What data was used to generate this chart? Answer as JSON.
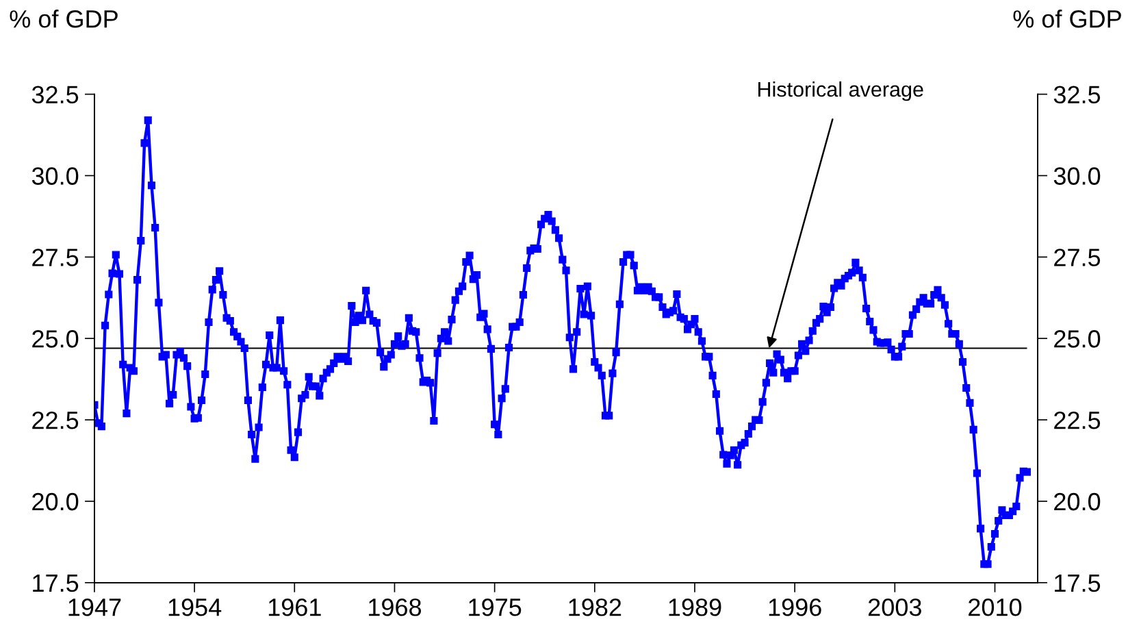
{
  "chart_data": {
    "type": "line",
    "ylabel": "% of GDP",
    "y2label": "% of GDP",
    "x": [
      1947,
      1947.25,
      1947.5,
      1947.75,
      1948,
      1948.25,
      1948.5,
      1948.75,
      1949,
      1949.25,
      1949.5,
      1949.75,
      1950,
      1950.25,
      1950.5,
      1950.75,
      1951,
      1951.25,
      1951.5,
      1951.75,
      1952,
      1952.25,
      1952.5,
      1952.75,
      1953,
      1953.25,
      1953.5,
      1953.75,
      1954,
      1954.25,
      1954.5,
      1954.75,
      1955,
      1955.25,
      1955.5,
      1955.75,
      1956,
      1956.25,
      1956.5,
      1956.75,
      1957,
      1957.25,
      1957.5,
      1957.75,
      1958,
      1958.25,
      1958.5,
      1958.75,
      1959,
      1959.25,
      1959.5,
      1959.75,
      1960,
      1960.25,
      1960.5,
      1960.75,
      1961,
      1961.25,
      1961.5,
      1961.75,
      1962,
      1962.25,
      1962.5,
      1962.75,
      1963,
      1963.25,
      1963.5,
      1963.75,
      1964,
      1964.25,
      1964.5,
      1964.75,
      1965,
      1965.25,
      1965.5,
      1965.75,
      1966,
      1966.25,
      1966.5,
      1966.75,
      1967,
      1967.25,
      1967.5,
      1967.75,
      1968,
      1968.25,
      1968.5,
      1968.75,
      1969,
      1969.25,
      1969.5,
      1969.75,
      1970,
      1970.25,
      1970.5,
      1970.75,
      1971,
      1971.25,
      1971.5,
      1971.75,
      1972,
      1972.25,
      1972.5,
      1972.75,
      1973,
      1973.25,
      1973.5,
      1973.75,
      1974,
      1974.25,
      1974.5,
      1974.75,
      1975,
      1975.25,
      1975.5,
      1975.75,
      1976,
      1976.25,
      1976.5,
      1976.75,
      1977,
      1977.25,
      1977.5,
      1977.75,
      1978,
      1978.25,
      1978.5,
      1978.75,
      1979,
      1979.25,
      1979.5,
      1979.75,
      1980,
      1980.25,
      1980.5,
      1980.75,
      1981,
      1981.25,
      1981.5,
      1981.75,
      1982,
      1982.25,
      1982.5,
      1982.75,
      1983,
      1983.25,
      1983.5,
      1983.75,
      1984,
      1984.25,
      1984.5,
      1984.75,
      1985,
      1985.25,
      1985.5,
      1985.75,
      1986,
      1986.25,
      1986.5,
      1986.75,
      1987,
      1987.25,
      1987.5,
      1987.75,
      1988,
      1988.25,
      1988.5,
      1988.75,
      1989,
      1989.25,
      1989.5,
      1989.75,
      1990,
      1990.25,
      1990.5,
      1990.75,
      1991,
      1991.25,
      1991.5,
      1991.75,
      1992,
      1992.25,
      1992.5,
      1992.75,
      1993,
      1993.25,
      1993.5,
      1993.75,
      1994,
      1994.25,
      1994.5,
      1994.75,
      1995,
      1995.25,
      1995.5,
      1995.75,
      1996,
      1996.25,
      1996.5,
      1996.75,
      1997,
      1997.25,
      1997.5,
      1997.75,
      1998,
      1998.25,
      1998.5,
      1998.75,
      1999,
      1999.25,
      1999.5,
      1999.75,
      2000,
      2000.25,
      2000.5,
      2000.75,
      2001,
      2001.25,
      2001.5,
      2001.75,
      2002,
      2002.25,
      2002.5,
      2002.75,
      2003,
      2003.25,
      2003.5,
      2003.75,
      2004,
      2004.25,
      2004.5,
      2004.75,
      2005,
      2005.25,
      2005.5,
      2005.75,
      2006,
      2006.25,
      2006.5,
      2006.75,
      2007,
      2007.25,
      2007.5,
      2007.75,
      2008,
      2008.25,
      2008.5,
      2008.75,
      2009,
      2009.25,
      2009.5,
      2009.75,
      2010,
      2010.25,
      2010.5,
      2010.75,
      2011,
      2011.25,
      2011.5,
      2011.75,
      2012,
      2012.25
    ],
    "series": [
      {
        "color": "#0000ff",
        "values": [
          22.96,
          22.4,
          22.3,
          25.4,
          26.35,
          27.0,
          27.57,
          26.98,
          24.2,
          22.7,
          24.1,
          24.0,
          26.8,
          28.0,
          31.0,
          31.7,
          29.7,
          28.4,
          26.1,
          24.44,
          24.5,
          23.0,
          23.27,
          24.5,
          24.6,
          24.4,
          24.15,
          22.9,
          22.54,
          22.56,
          23.1,
          23.9,
          25.5,
          26.5,
          26.8,
          27.07,
          26.34,
          25.63,
          25.54,
          25.2,
          25.06,
          24.9,
          24.7,
          23.1,
          22.05,
          21.3,
          22.27,
          23.5,
          24.2,
          25.1,
          24.1,
          24.1,
          25.56,
          24.0,
          23.58,
          21.57,
          21.35,
          22.12,
          23.16,
          23.27,
          23.82,
          23.53,
          23.53,
          23.24,
          23.77,
          23.95,
          24.06,
          24.24,
          24.44,
          24.37,
          24.44,
          24.3,
          26.0,
          25.5,
          25.7,
          25.56,
          26.47,
          25.74,
          25.54,
          25.48,
          24.57,
          24.13,
          24.37,
          24.5,
          24.83,
          25.07,
          24.77,
          24.83,
          25.63,
          25.23,
          25.2,
          24.4,
          23.66,
          23.71,
          23.64,
          22.47,
          24.55,
          25.0,
          25.2,
          24.92,
          25.58,
          26.18,
          26.45,
          26.6,
          27.35,
          27.55,
          26.82,
          26.95,
          25.65,
          25.76,
          25.28,
          24.68,
          22.36,
          22.05,
          23.16,
          23.45,
          24.72,
          25.36,
          25.36,
          25.5,
          26.34,
          27.16,
          27.7,
          27.77,
          27.75,
          28.5,
          28.68,
          28.8,
          28.6,
          28.33,
          28.08,
          27.42,
          27.09,
          25.03,
          24.06,
          25.2,
          26.53,
          25.74,
          26.6,
          25.7,
          24.28,
          24.1,
          23.86,
          22.63,
          22.63,
          23.93,
          24.57,
          26.05,
          27.35,
          27.57,
          27.57,
          27.24,
          26.47,
          26.58,
          26.47,
          26.58,
          26.45,
          26.27,
          26.27,
          25.96,
          25.74,
          25.8,
          25.85,
          26.36,
          25.65,
          25.6,
          25.28,
          25.43,
          25.6,
          25.2,
          24.92,
          24.44,
          24.44,
          23.86,
          23.29,
          22.16,
          21.43,
          21.15,
          21.41,
          21.57,
          21.12,
          21.72,
          21.8,
          22.07,
          22.3,
          22.5,
          22.49,
          23.05,
          23.64,
          24.24,
          23.95,
          24.52,
          24.35,
          23.95,
          23.77,
          24.0,
          24.0,
          24.48,
          24.83,
          24.61,
          24.94,
          25.23,
          25.48,
          25.6,
          25.98,
          25.8,
          25.96,
          26.54,
          26.71,
          26.62,
          26.84,
          26.93,
          27.02,
          27.33,
          27.09,
          26.87,
          25.92,
          25.52,
          25.26,
          24.9,
          24.86,
          24.86,
          24.88,
          24.66,
          24.44,
          24.44,
          24.75,
          25.14,
          25.14,
          25.72,
          25.9,
          26.12,
          26.25,
          26.07,
          26.07,
          26.34,
          26.49,
          26.25,
          26.03,
          25.45,
          25.14,
          25.14,
          24.83,
          24.28,
          23.48,
          23.02,
          22.2,
          20.86,
          19.16,
          18.07,
          18.07,
          18.6,
          19.0,
          19.4,
          19.73,
          19.57,
          19.57,
          19.69,
          19.84,
          20.72,
          20.92,
          20.9
        ]
      }
    ],
    "xlim": [
      1947,
      2013
    ],
    "xticks": [
      1947,
      1954,
      1961,
      1968,
      1975,
      1982,
      1989,
      1996,
      2003,
      2010
    ],
    "ylim": [
      17.5,
      32.5
    ],
    "yticks": [
      17.5,
      {
        "value": 20,
        "label": "20.0"
      },
      22.5,
      {
        "value": 25,
        "label": "25.0"
      },
      27.5,
      {
        "value": 30,
        "label": "30.0"
      },
      32.5
    ],
    "y2lim": [
      17.5,
      32.5
    ],
    "y2ticks": [
      17.5,
      {
        "value": 20,
        "label": "20.0"
      },
      22.5,
      {
        "value": 25,
        "label": "25.0"
      },
      27.5,
      {
        "value": 30,
        "label": "30.0"
      },
      32.5
    ],
    "ref_lines": [
      {
        "axis": "y",
        "value": 24.7,
        "color": "#000000",
        "line_style": "solid"
      }
    ],
    "annotations": [
      {
        "text": "Historical average",
        "x": 1994.2,
        "y": 24.7
      }
    ],
    "marker": "square",
    "line_style": "solid",
    "grid": false,
    "legend": false
  }
}
